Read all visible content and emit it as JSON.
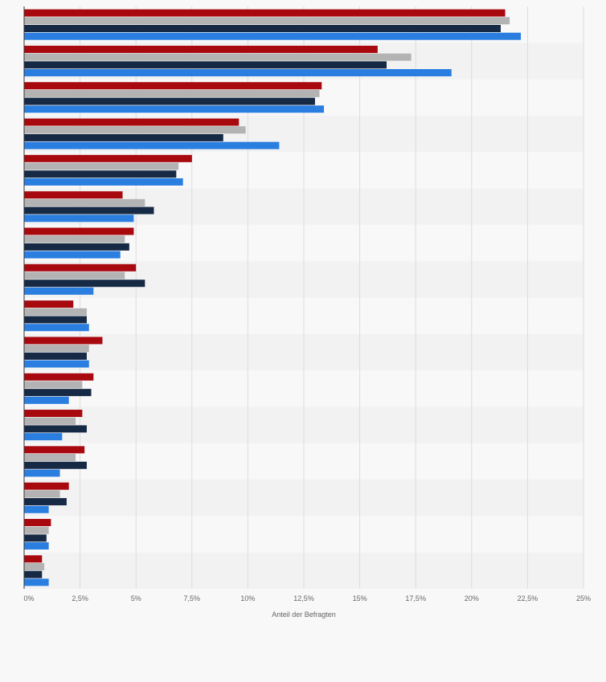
{
  "chart_data": {
    "type": "bar",
    "orientation": "horizontal",
    "xlabel": "Anteil der Befragten",
    "xlim": [
      0,
      25
    ],
    "x_ticks": [
      "0%",
      "2,5%",
      "5%",
      "7,5%",
      "10%",
      "12,5%",
      "15%",
      "17,5%",
      "20%",
      "22,5%",
      "25%"
    ],
    "grid": true,
    "categories": [
      "",
      "",
      "",
      "",
      "",
      "",
      "",
      "",
      "",
      "",
      "",
      "",
      "",
      "",
      "",
      ""
    ],
    "series": [
      {
        "color": "#a8090f",
        "values": [
          21.5,
          15.8,
          13.3,
          9.6,
          7.5,
          4.4,
          4.9,
          5.0,
          2.2,
          3.5,
          3.1,
          2.6,
          2.7,
          2.0,
          1.2,
          0.8
        ]
      },
      {
        "color": "#b3b3b3",
        "values": [
          21.7,
          17.3,
          13.2,
          9.9,
          6.9,
          5.4,
          4.5,
          4.5,
          2.8,
          2.9,
          2.6,
          2.3,
          2.3,
          1.6,
          1.1,
          0.9
        ]
      },
      {
        "color": "#172a45",
        "values": [
          21.3,
          16.2,
          13.0,
          8.9,
          6.8,
          5.8,
          4.7,
          5.4,
          2.8,
          2.8,
          3.0,
          2.8,
          2.8,
          1.9,
          1.0,
          0.8
        ]
      },
      {
        "color": "#2a7ee0",
        "values": [
          22.2,
          19.1,
          13.4,
          11.4,
          7.1,
          4.9,
          4.3,
          3.1,
          2.9,
          2.9,
          2.0,
          1.7,
          1.6,
          1.1,
          1.1,
          1.1
        ]
      }
    ],
    "colors": {
      "plot_band_odd": "#f2f2f2",
      "plot_band_even": "#f8f8f8",
      "gridline": "#dcdcdc",
      "axis_line": "#333333"
    }
  }
}
